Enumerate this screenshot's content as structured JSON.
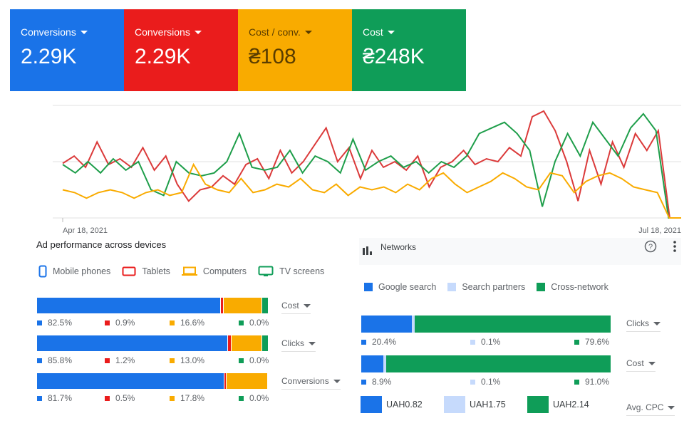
{
  "scorecards": [
    {
      "label": "Conversions",
      "value": "2.29K",
      "color": "#1a73e8"
    },
    {
      "label": "Conversions",
      "value": "2.29K",
      "color": "#ea1c1c"
    },
    {
      "label": "Cost / conv.",
      "value": "₴108",
      "color": "#f9ab00"
    },
    {
      "label": "Cost",
      "value": "₴248K",
      "color": "#0f9d58"
    }
  ],
  "chart_data": {
    "type": "line",
    "x_start": "Apr 18, 2021",
    "x_end": "Jul 18, 2021",
    "grid": true,
    "series": [
      {
        "color": "#db3a3a",
        "values": [
          0.97,
          1.1,
          0.9,
          1.35,
          0.95,
          1.05,
          0.9,
          1.25,
          0.85,
          1.1,
          0.6,
          0.3,
          0.5,
          0.55,
          0.75,
          0.6,
          0.95,
          1.05,
          0.7,
          1.2,
          0.8,
          1.0,
          1.3,
          1.6,
          1.0,
          1.25,
          0.7,
          1.2,
          0.9,
          1.0,
          0.85,
          1.1,
          0.55,
          0.9,
          1.0,
          1.2,
          0.95,
          1.05,
          1.0,
          1.25,
          1.1,
          1.8,
          1.9,
          1.55,
          1.0,
          0.3,
          1.2,
          0.6,
          1.35,
          0.9,
          1.5,
          1.2,
          1.55,
          0,
          0
        ]
      },
      {
        "color": "#1e9e4a",
        "values": [
          0.95,
          0.8,
          1.0,
          0.8,
          1.05,
          0.85,
          1.0,
          0.5,
          0.4,
          1.0,
          0.8,
          0.75,
          0.8,
          1.0,
          1.5,
          0.9,
          0.85,
          0.9,
          1.2,
          0.8,
          1.1,
          1.0,
          0.8,
          1.4,
          0.85,
          1.0,
          1.1,
          0.9,
          1.0,
          0.8,
          1.0,
          0.9,
          1.1,
          1.5,
          1.6,
          1.7,
          1.5,
          1.2,
          0.2,
          1.0,
          1.5,
          1.1,
          1.7,
          1.4,
          1.1,
          1.6,
          1.85,
          1.55,
          0,
          0
        ]
      },
      {
        "color": "#f9ab00",
        "values": [
          0.5,
          0.45,
          0.35,
          0.45,
          0.5,
          0.45,
          0.35,
          0.45,
          0.5,
          0.4,
          0.45,
          0.95,
          0.6,
          0.5,
          0.45,
          0.7,
          0.45,
          0.5,
          0.6,
          0.55,
          0.7,
          0.5,
          0.45,
          0.6,
          0.4,
          0.55,
          0.5,
          0.55,
          0.45,
          0.6,
          0.5,
          0.7,
          0.8,
          0.6,
          0.45,
          0.55,
          0.65,
          0.8,
          0.7,
          0.55,
          0.5,
          0.8,
          0.75,
          0.45,
          0.65,
          0.75,
          0.8,
          0.7,
          0.55,
          0.5,
          0.45,
          0,
          0
        ]
      }
    ]
  },
  "devices": {
    "title": "Ad performance across devices",
    "legend": [
      {
        "label": "Mobile phones",
        "icon": "phone-icon",
        "color": "#1a73e8"
      },
      {
        "label": "Tablets",
        "icon": "tablet-icon",
        "color": "#ea1c1c"
      },
      {
        "label": "Computers",
        "icon": "laptop-icon",
        "color": "#f9ab00"
      },
      {
        "label": "TV screens",
        "icon": "tv-icon",
        "color": "#0f9d58"
      }
    ],
    "rows": [
      {
        "metric": "Cost",
        "values": [
          82.5,
          0.9,
          16.6,
          0.0
        ],
        "labels": [
          "82.5%",
          "0.9%",
          "16.6%",
          "0.0%"
        ]
      },
      {
        "metric": "Clicks",
        "values": [
          85.8,
          1.2,
          13.0,
          0.0
        ],
        "labels": [
          "85.8%",
          "1.2%",
          "13.0%",
          "0.0%"
        ]
      },
      {
        "metric": "Conversions",
        "values": [
          81.7,
          0.5,
          17.8,
          0.0
        ],
        "labels": [
          "81.7%",
          "0.5%",
          "17.8%",
          "0.0%"
        ]
      }
    ]
  },
  "networks": {
    "title": "Networks",
    "legend": [
      {
        "label": "Google search",
        "color": "#1a73e8"
      },
      {
        "label": "Search partners",
        "color": "#c6dafc"
      },
      {
        "label": "Cross-network",
        "color": "#0f9d58"
      }
    ],
    "rows": [
      {
        "metric": "Clicks",
        "values": [
          20.4,
          0.1,
          79.6
        ],
        "labels": [
          "20.4%",
          "0.1%",
          "79.6%"
        ]
      },
      {
        "metric": "Cost",
        "values": [
          8.9,
          0.1,
          91.0
        ],
        "labels": [
          "8.9%",
          "0.1%",
          "91.0%"
        ]
      }
    ],
    "cpc": {
      "metric": "Avg. CPC",
      "values": [
        "UAH0.82",
        "UAH1.75",
        "UAH2.14"
      ]
    }
  }
}
